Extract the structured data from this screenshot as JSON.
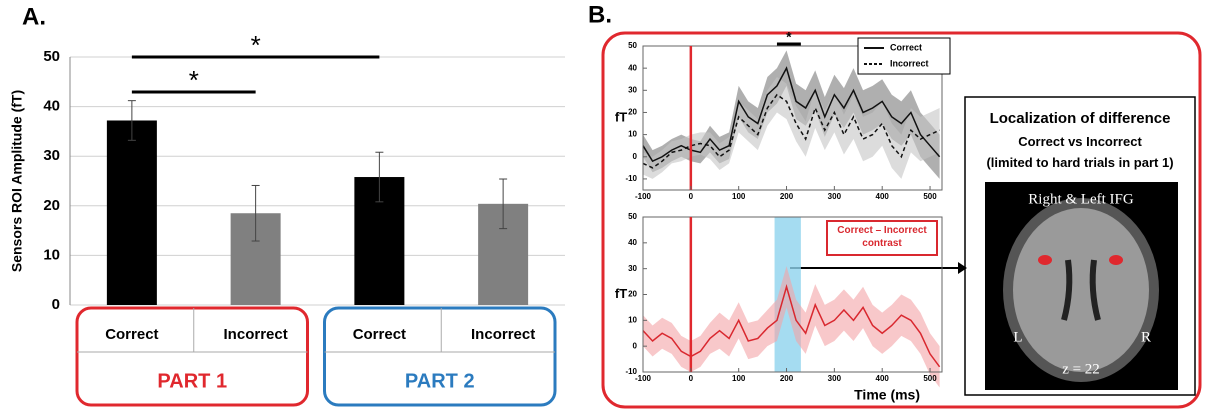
{
  "panels": {
    "a": "A.",
    "b": "B."
  },
  "localization": {
    "title": "Localization of difference",
    "subtitle": "Correct vs Incorrect",
    "note": "(limited to hard trials in part 1)",
    "image_title": "Right & Left IFG",
    "left": "L",
    "right": "R",
    "slice": "z = 22"
  },
  "chart_data": [
    {
      "type": "bar",
      "y_label": "Sensors ROI Amplitude (fT)",
      "categories": [
        "Correct",
        "Incorrect",
        "Correct",
        "Incorrect"
      ],
      "values": [
        37.2,
        18.5,
        25.8,
        20.4
      ],
      "errors": [
        4,
        5.6,
        5,
        5
      ],
      "colors": [
        "#000000",
        "#808080",
        "#000000",
        "#808080"
      ],
      "groups": [
        {
          "name": "PART 1",
          "color": "#e0282e"
        },
        {
          "name": "PART 2",
          "color": "#2b7bbf"
        }
      ],
      "significance": [
        {
          "from": 0,
          "to": 2,
          "label": "*"
        },
        {
          "from": 0,
          "to": 1,
          "label": "*"
        }
      ],
      "ylim": [
        0,
        50
      ],
      "yticks": [
        0,
        10,
        20,
        30,
        40,
        50
      ],
      "grid": true
    },
    {
      "type": "line",
      "y_label": "fT",
      "x": [
        -100,
        -80,
        -60,
        -40,
        -20,
        0,
        20,
        40,
        60,
        80,
        100,
        120,
        140,
        160,
        180,
        200,
        220,
        240,
        260,
        280,
        300,
        320,
        340,
        360,
        380,
        400,
        420,
        440,
        460,
        480,
        500,
        520
      ],
      "series": [
        {
          "name": "Correct",
          "color": "#111111",
          "band_color": "#7a7a7a",
          "dash": false,
          "values": [
            5,
            -2,
            0,
            3,
            5,
            3,
            2,
            8,
            3,
            5,
            25,
            18,
            15,
            28,
            32,
            40,
            25,
            22,
            30,
            18,
            28,
            22,
            30,
            20,
            22,
            25,
            18,
            15,
            20,
            10,
            5,
            0
          ],
          "errors": [
            5,
            5,
            5,
            5,
            5,
            5,
            5,
            6,
            6,
            6,
            7,
            7,
            7,
            8,
            8,
            8,
            8,
            8,
            9,
            9,
            9,
            9,
            10,
            10,
            10,
            10,
            10,
            10,
            10,
            10,
            10,
            10
          ]
        },
        {
          "name": "Incorrect",
          "color": "#111111",
          "band_color": "#c4c4c4",
          "dash": true,
          "values": [
            -3,
            -5,
            -2,
            2,
            3,
            5,
            6,
            5,
            0,
            3,
            18,
            14,
            10,
            22,
            28,
            25,
            15,
            8,
            22,
            12,
            20,
            10,
            18,
            8,
            10,
            15,
            5,
            0,
            12,
            8,
            10,
            12
          ],
          "errors": [
            5,
            5,
            5,
            5,
            5,
            5,
            5,
            6,
            6,
            6,
            7,
            7,
            7,
            8,
            8,
            8,
            8,
            8,
            9,
            9,
            9,
            9,
            10,
            10,
            10,
            10,
            10,
            10,
            10,
            10,
            10,
            10
          ]
        }
      ],
      "significance": {
        "x": [
          180,
          230
        ],
        "label": "*"
      },
      "marker_x": 0,
      "xlim": [
        -100,
        525
      ],
      "xticks": [
        -100,
        0,
        100,
        200,
        300,
        400,
        500
      ],
      "ylim": [
        -15,
        50
      ],
      "yticks": [
        -10,
        0,
        10,
        20,
        30,
        40,
        50
      ],
      "legend": "top-right"
    },
    {
      "type": "line",
      "y_label": "fT",
      "x_label": "Time (ms)",
      "x": [
        -100,
        -80,
        -60,
        -40,
        -20,
        0,
        20,
        40,
        60,
        80,
        100,
        120,
        140,
        160,
        180,
        200,
        220,
        240,
        260,
        280,
        300,
        320,
        340,
        360,
        380,
        400,
        420,
        440,
        460,
        480,
        500,
        520
      ],
      "series": [
        {
          "name": "Correct – Incorrect contrast",
          "color": "#d9282f",
          "band_color": "#f4a3a6",
          "dash": false,
          "values": [
            6,
            2,
            5,
            3,
            -2,
            -4,
            -2,
            3,
            6,
            3,
            10,
            2,
            3,
            7,
            10,
            23,
            10,
            5,
            16,
            8,
            10,
            14,
            10,
            15,
            8,
            5,
            8,
            12,
            10,
            5,
            -3,
            -8
          ],
          "errors": [
            6,
            6,
            6,
            6,
            6,
            6,
            6,
            6,
            7,
            7,
            7,
            7,
            7,
            7,
            8,
            8,
            8,
            8,
            8,
            8,
            8,
            8,
            8,
            8,
            8,
            8,
            8,
            8,
            8,
            8,
            8,
            8
          ]
        }
      ],
      "highlight_window": [
        175,
        230
      ],
      "marker_x": 0,
      "xlim": [
        -100,
        525
      ],
      "xticks": [
        -100,
        0,
        100,
        200,
        300,
        400,
        500
      ],
      "ylim": [
        -10,
        50
      ],
      "yticks": [
        -10,
        0,
        10,
        20,
        30,
        40,
        50
      ],
      "legend": "box"
    }
  ]
}
